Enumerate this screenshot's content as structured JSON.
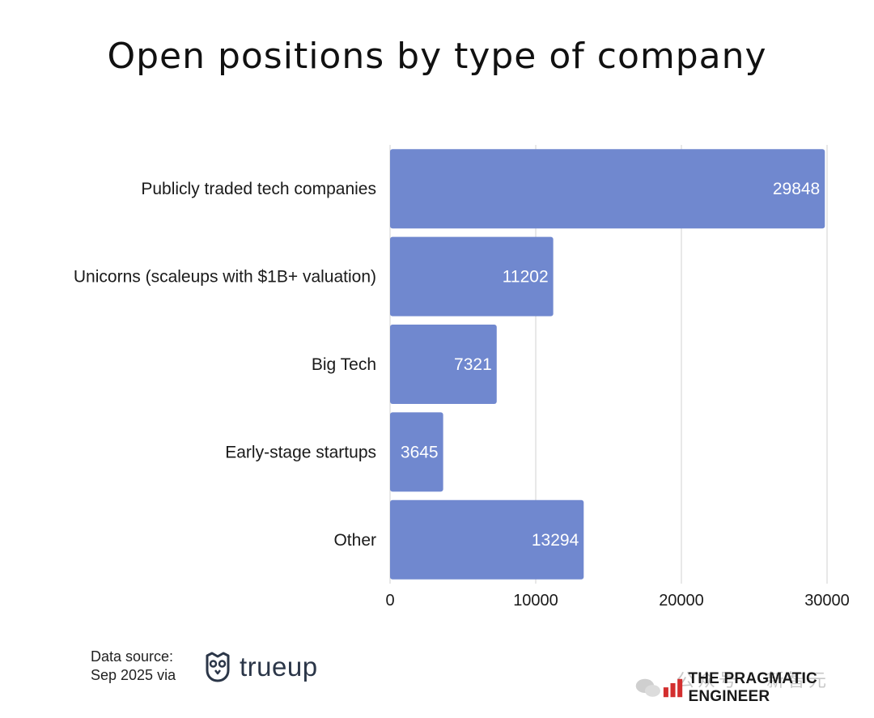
{
  "chart_data": {
    "type": "bar",
    "orientation": "horizontal",
    "title": "Open positions by type of company",
    "categories": [
      "Publicly traded tech companies",
      "Unicorns (scaleups with $1B+ valuation)",
      "Big Tech",
      "Early-stage startups",
      "Other"
    ],
    "values": [
      29848,
      11202,
      7321,
      3645,
      13294
    ],
    "data_labels": [
      "29848",
      "11202",
      "7321",
      "3645",
      "13294"
    ],
    "xlim": [
      0,
      30000
    ],
    "xticks": [
      0,
      10000,
      20000,
      30000
    ],
    "xtick_labels": [
      "0",
      "10000",
      "20000",
      "30000"
    ],
    "xlabel": "",
    "ylabel": "",
    "grid": "vertical",
    "bar_color": "#7088cf",
    "label_color": "#ffffff"
  },
  "footer": {
    "source_line1": "Data source:",
    "source_line2": "Sep 2025 via",
    "source_brand": "trueup",
    "publisher": "THE PRAGMATIC ENGINEER",
    "watermark": "公众号 · 新智元",
    "publisher_color": "#d32f2f"
  }
}
